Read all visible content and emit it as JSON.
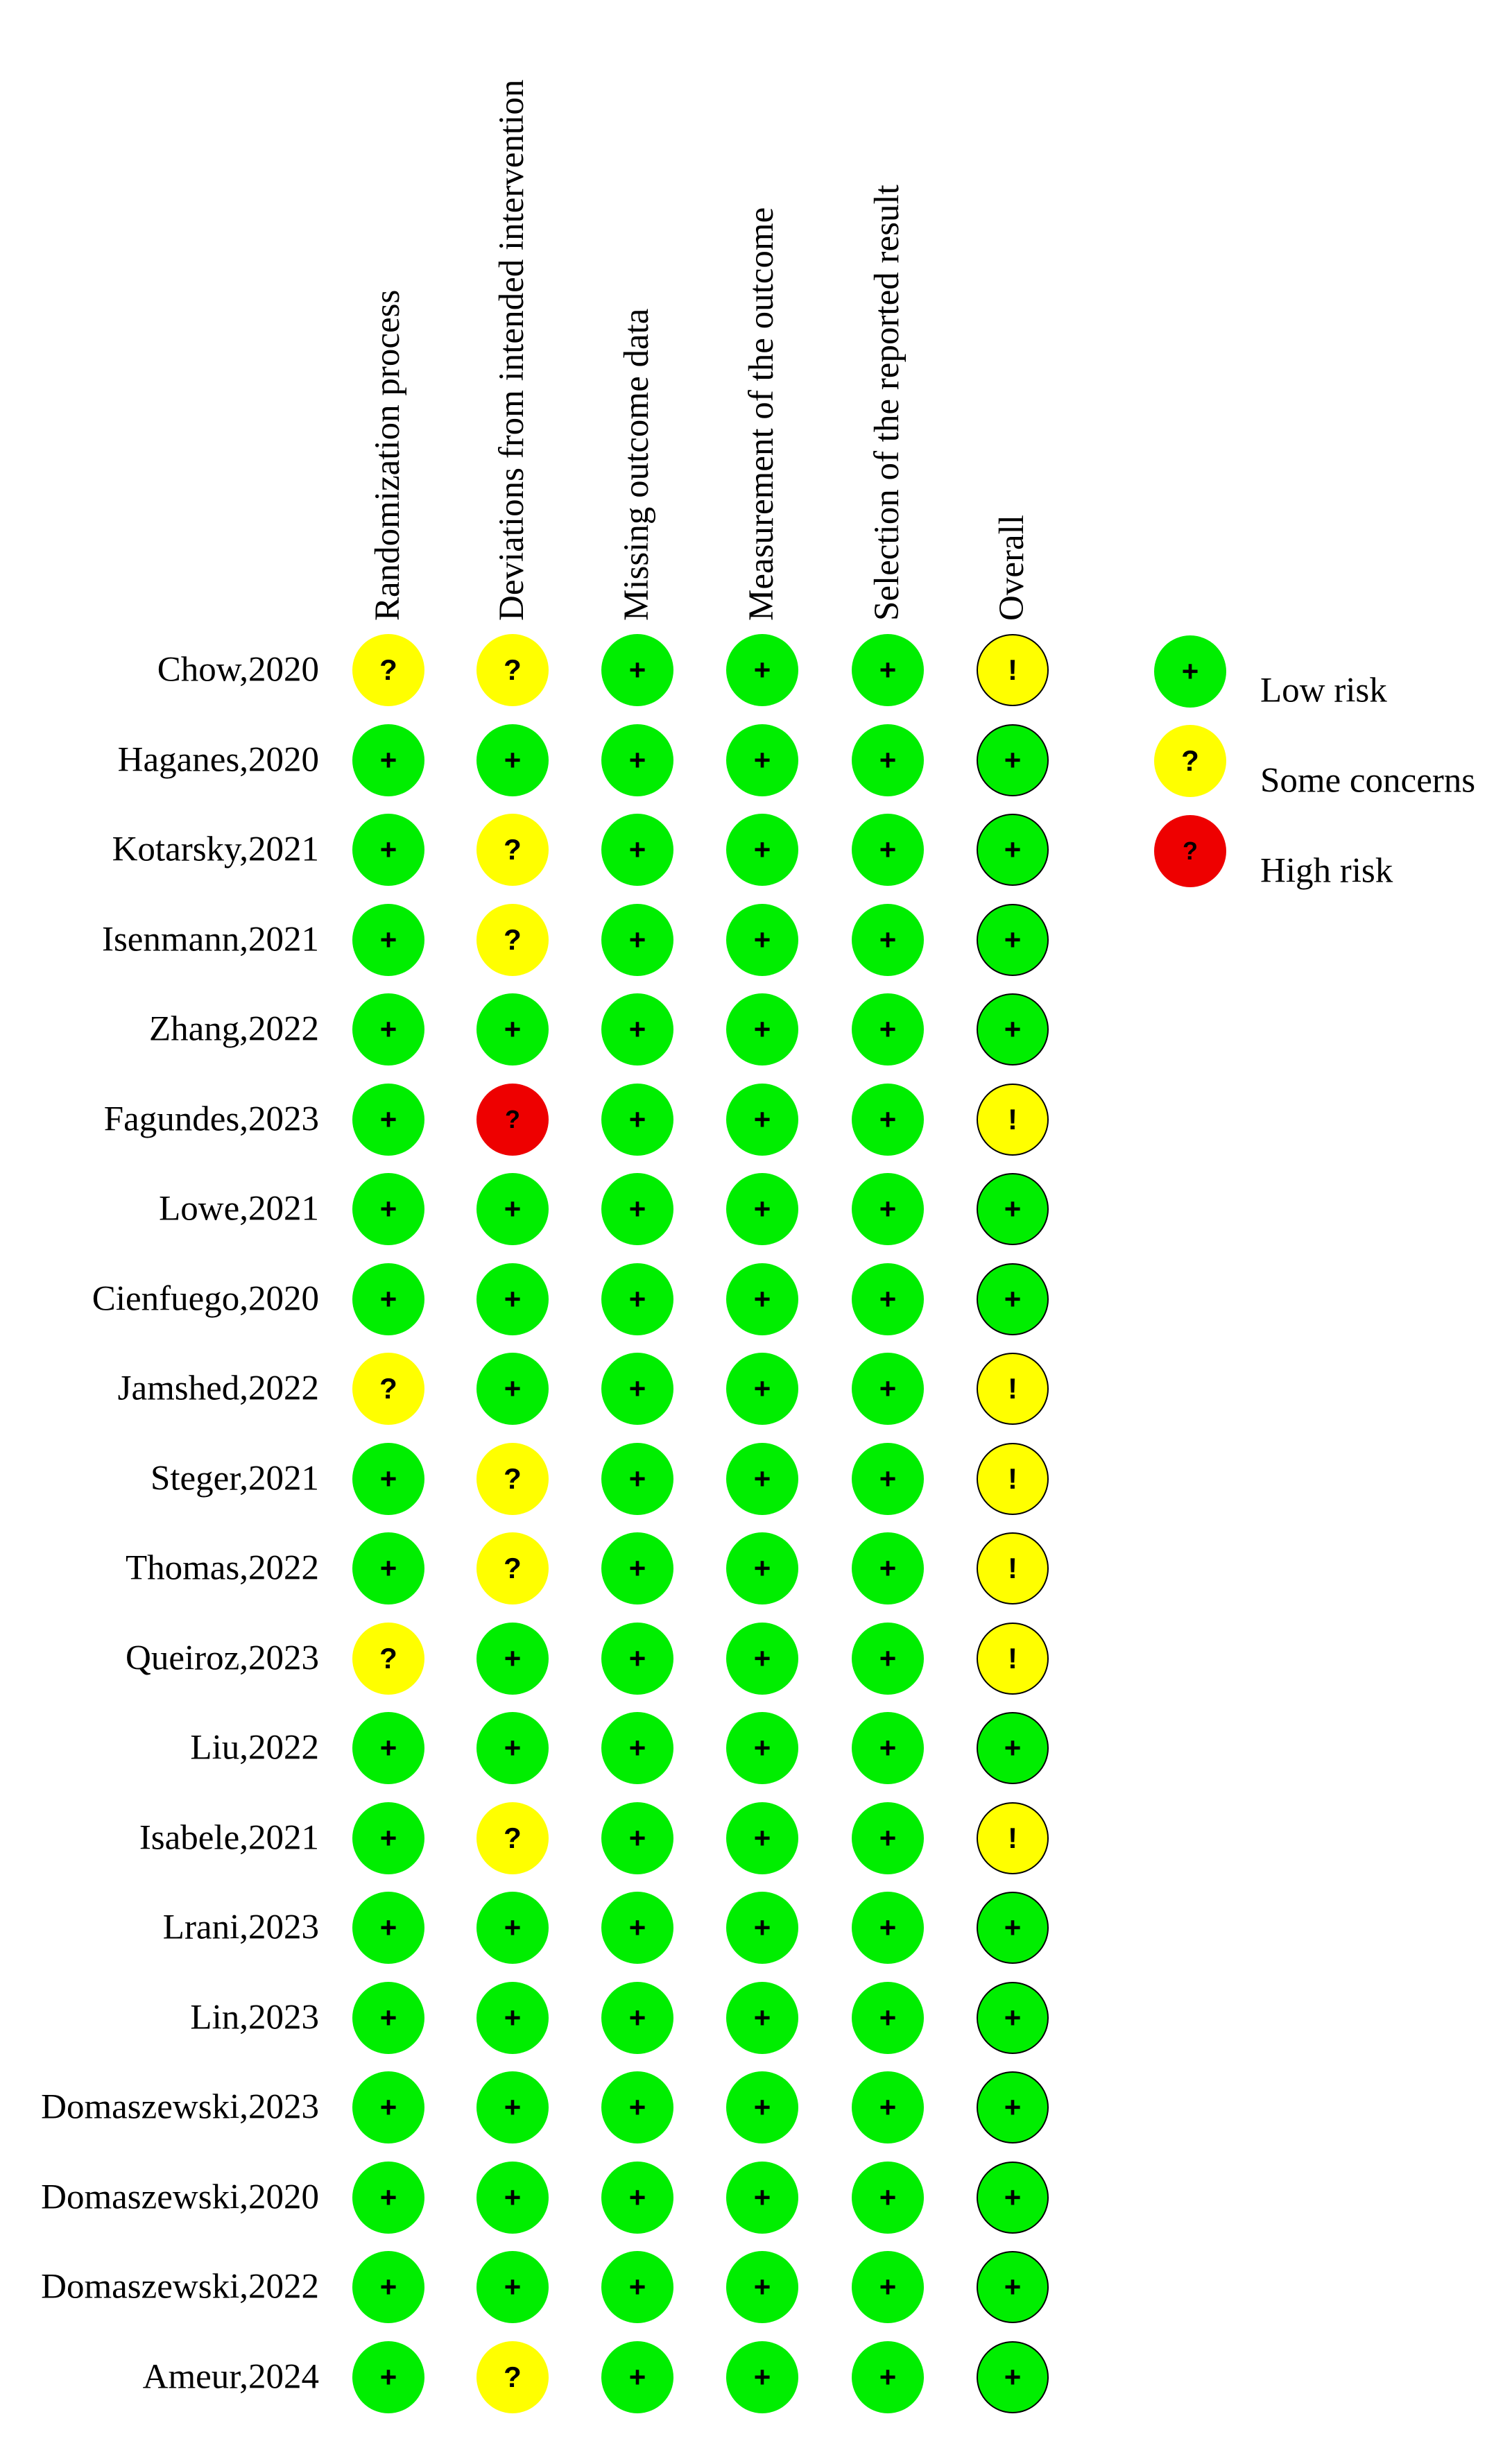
{
  "domains": [
    "Randomization process",
    "Deviations from intended intervention",
    "Missing outcome data",
    "Measurement of the outcome",
    "Selection of the reported result",
    "Overall"
  ],
  "symbols": {
    "low": "+",
    "some": "?",
    "high": "?",
    "overall_some": "!"
  },
  "colors": {
    "low": "#00ee00",
    "some": "#ffff00",
    "high": "#ee0000"
  },
  "studies": [
    {
      "label": "Chow,2020",
      "ratings": [
        "some",
        "some",
        "low",
        "low",
        "low",
        "some"
      ]
    },
    {
      "label": "Haganes,2020",
      "ratings": [
        "low",
        "low",
        "low",
        "low",
        "low",
        "low"
      ]
    },
    {
      "label": "Kotarsky,2021",
      "ratings": [
        "low",
        "some",
        "low",
        "low",
        "low",
        "low"
      ]
    },
    {
      "label": "Isenmann,2021",
      "ratings": [
        "low",
        "some",
        "low",
        "low",
        "low",
        "low"
      ]
    },
    {
      "label": "Zhang,2022",
      "ratings": [
        "low",
        "low",
        "low",
        "low",
        "low",
        "low"
      ]
    },
    {
      "label": "Fagundes,2023",
      "ratings": [
        "low",
        "high",
        "low",
        "low",
        "low",
        "some"
      ]
    },
    {
      "label": "Lowe,2021",
      "ratings": [
        "low",
        "low",
        "low",
        "low",
        "low",
        "low"
      ]
    },
    {
      "label": "Cienfuego,2020",
      "ratings": [
        "low",
        "low",
        "low",
        "low",
        "low",
        "low"
      ]
    },
    {
      "label": "Jamshed,2022",
      "ratings": [
        "some",
        "low",
        "low",
        "low",
        "low",
        "some"
      ]
    },
    {
      "label": "Steger,2021",
      "ratings": [
        "low",
        "some",
        "low",
        "low",
        "low",
        "some"
      ]
    },
    {
      "label": "Thomas,2022",
      "ratings": [
        "low",
        "some",
        "low",
        "low",
        "low",
        "some"
      ]
    },
    {
      "label": "Queiroz,2023",
      "ratings": [
        "some",
        "low",
        "low",
        "low",
        "low",
        "some"
      ]
    },
    {
      "label": "Liu,2022",
      "ratings": [
        "low",
        "low",
        "low",
        "low",
        "low",
        "low"
      ]
    },
    {
      "label": "Isabele,2021",
      "ratings": [
        "low",
        "some",
        "low",
        "low",
        "low",
        "some"
      ]
    },
    {
      "label": "Lrani,2023",
      "ratings": [
        "low",
        "low",
        "low",
        "low",
        "low",
        "low"
      ]
    },
    {
      "label": "Lin,2023",
      "ratings": [
        "low",
        "low",
        "low",
        "low",
        "low",
        "low"
      ]
    },
    {
      "label": "Domaszewski,2023",
      "ratings": [
        "low",
        "low",
        "low",
        "low",
        "low",
        "low"
      ]
    },
    {
      "label": "Domaszewski,2020",
      "ratings": [
        "low",
        "low",
        "low",
        "low",
        "low",
        "low"
      ]
    },
    {
      "label": "Domaszewski,2022",
      "ratings": [
        "low",
        "low",
        "low",
        "low",
        "low",
        "low"
      ]
    },
    {
      "label": "Ameur,2024",
      "ratings": [
        "low",
        "some",
        "low",
        "low",
        "low",
        "low"
      ]
    }
  ],
  "legend": [
    {
      "level": "low",
      "label": "Low risk"
    },
    {
      "level": "some",
      "label": "Some concerns"
    },
    {
      "level": "high",
      "label": "High risk"
    }
  ]
}
